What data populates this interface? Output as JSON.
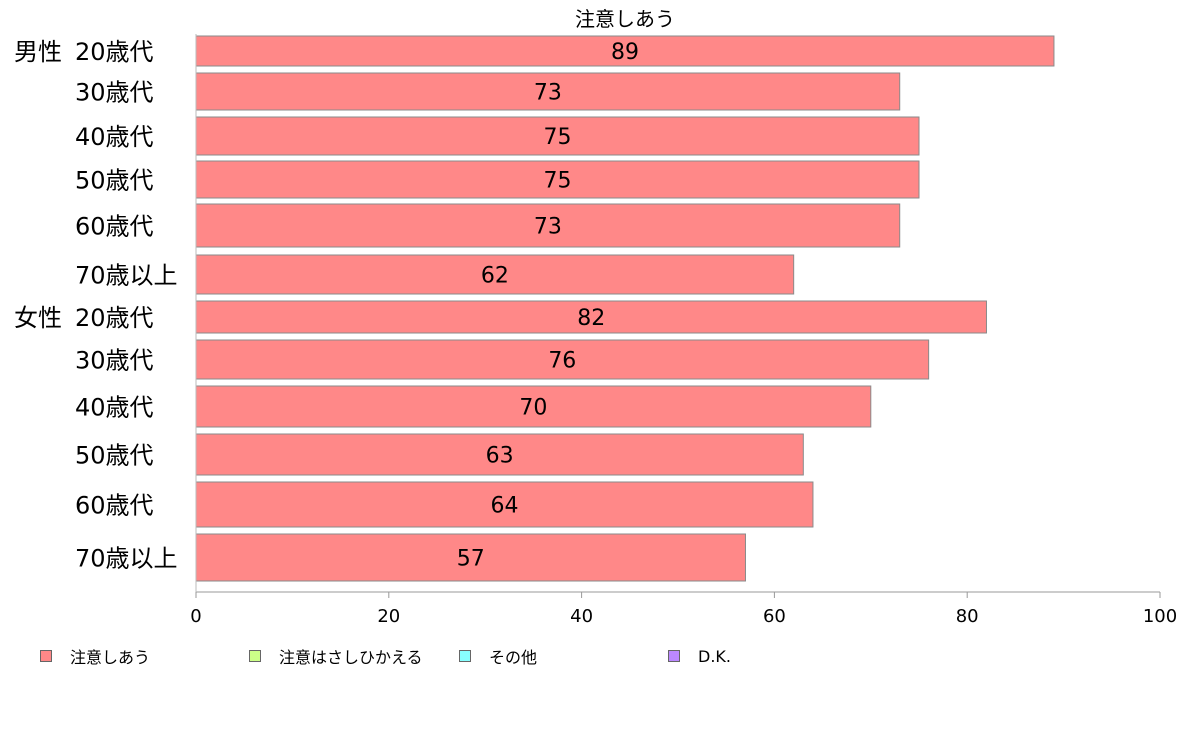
{
  "chart_data": {
    "type": "bar",
    "orientation": "horizontal",
    "title": "注意しあう",
    "groups": [
      {
        "label": "男性",
        "categories": [
          "20歳代",
          "30歳代",
          "40歳代",
          "50歳代",
          "60歳代",
          "70歳以上"
        ]
      },
      {
        "label": "女性",
        "categories": [
          "20歳代",
          "30歳代",
          "40歳代",
          "50歳代",
          "60歳代",
          "70歳以上"
        ]
      }
    ],
    "series": [
      {
        "name": "注意しあう",
        "color": "#ff8888",
        "values": [
          89,
          73,
          75,
          75,
          73,
          62,
          82,
          76,
          70,
          63,
          64,
          57
        ],
        "labels": [
          "89",
          "73",
          "75",
          "75",
          "73",
          "62",
          "82",
          "76",
          "70",
          "63",
          "64",
          "57"
        ]
      }
    ],
    "xlim": [
      0,
      100
    ],
    "xticks": [
      0,
      20,
      40,
      60,
      80,
      100
    ],
    "grid": false,
    "legend_position": "bottom",
    "legend": [
      {
        "name": "注意しあう",
        "color": "#ff8888"
      },
      {
        "name": "注意はさしひかえる",
        "color": "#ccff88"
      },
      {
        "name": "その他",
        "color": "#88ffff"
      },
      {
        "name": "D.K.",
        "color": "#bb88ff"
      }
    ]
  }
}
